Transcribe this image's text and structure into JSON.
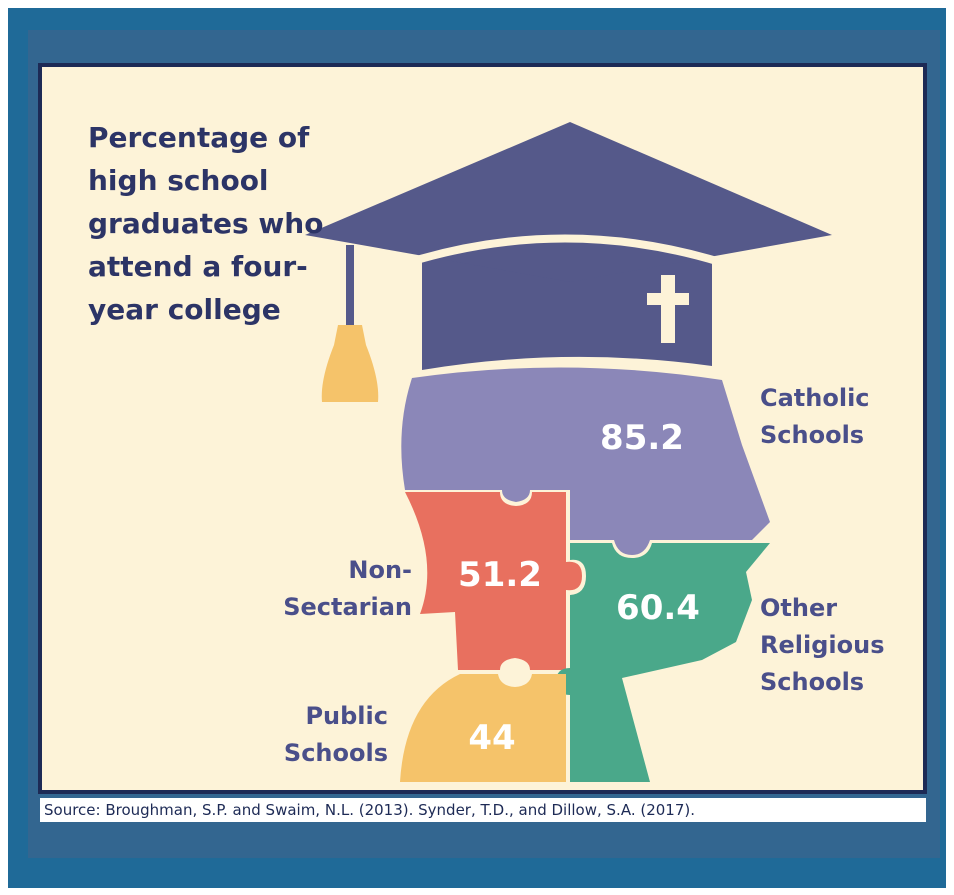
{
  "title": "Percentage of high school graduates who attend a four-year college",
  "segments": [
    {
      "label": "Catholic Schools",
      "value": 85.2
    },
    {
      "label": "Non-Sectarian",
      "value": 51.2
    },
    {
      "label": "Other Religious Schools",
      "value": 60.4
    },
    {
      "label": "Public Schools",
      "value": 44
    }
  ],
  "source": "Source: Broughman, S.P. and Swaim, N.L. (2013). Synder, T.D., and Dillow, S.A. (2017)."
}
